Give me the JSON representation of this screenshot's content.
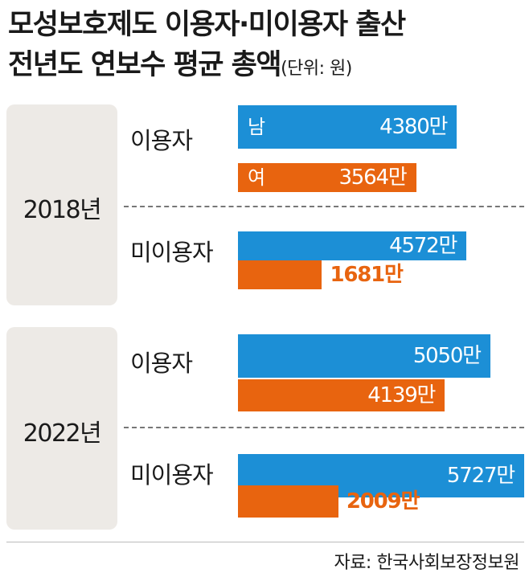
{
  "title_line1": "모성보호제도 이용자·미이용자 출산",
  "title_line2": "전년도 연보수 평균 총액",
  "unit": "(단위: 원)",
  "source": "자료: 한국사회보장정보원",
  "colors": {
    "male": "#1c8fd6",
    "female": "#e8640f",
    "panel": "#edeae6"
  },
  "chart_data": {
    "type": "bar",
    "orientation": "horizontal",
    "unit_label": "(단위: 원)",
    "series_labels": {
      "male": "남",
      "female": "여"
    },
    "groups": [
      {
        "year": "2018년",
        "categories": [
          {
            "label": "이용자",
            "male": 4380,
            "female": 3564,
            "male_label": "4380만",
            "female_label": "3564만"
          },
          {
            "label": "미이용자",
            "male": 4572,
            "female": 1681,
            "male_label": "4572만",
            "female_label": "1681만"
          }
        ]
      },
      {
        "year": "2022년",
        "categories": [
          {
            "label": "이용자",
            "male": 5050,
            "female": 4139,
            "male_label": "5050만",
            "female_label": "4139만"
          },
          {
            "label": "미이용자",
            "male": 5727,
            "female": 2009,
            "male_label": "5727만",
            "female_label": "2009만"
          }
        ]
      }
    ]
  }
}
